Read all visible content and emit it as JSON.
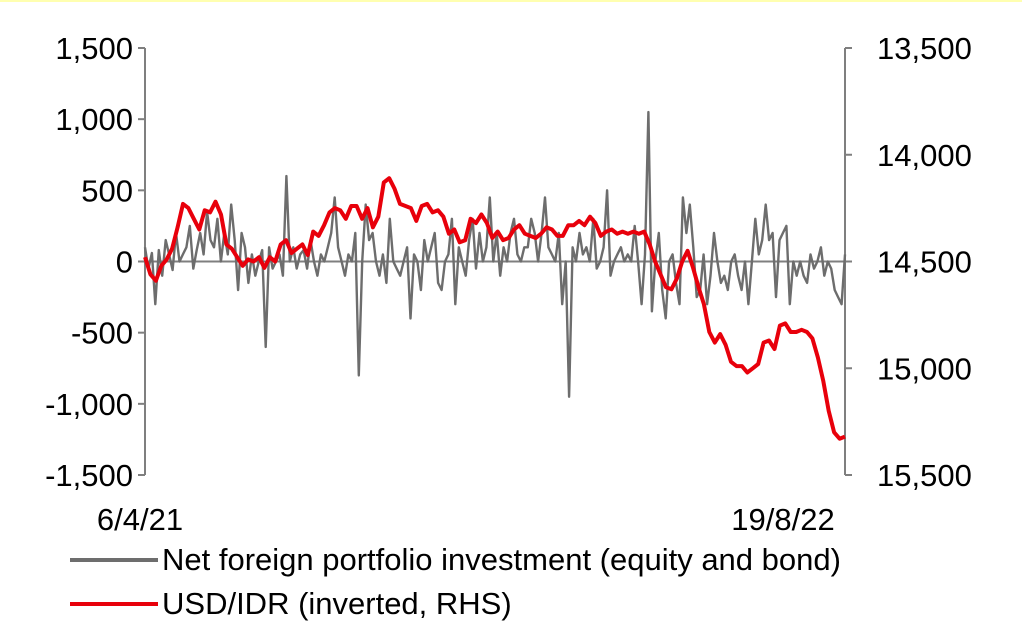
{
  "chart_data": {
    "type": "line",
    "x_start_label": "6/4/21",
    "x_end_label": "19/8/22",
    "left_axis": {
      "ylim": [
        -1500,
        1500
      ],
      "ticks": [
        1500,
        1000,
        500,
        0,
        -500,
        -1000,
        -1500
      ],
      "tick_labels": [
        "1,500",
        "1,000",
        "500",
        "0",
        "-500",
        "-1,000",
        "-1,500"
      ]
    },
    "right_axis": {
      "inverted": true,
      "ylim": [
        13500,
        15500
      ],
      "ticks": [
        13500,
        14000,
        14500,
        15000,
        15500
      ],
      "tick_labels": [
        "13,500",
        "14,000",
        "14,500",
        "15,000",
        "15,500"
      ]
    },
    "series": [
      {
        "name": "Net foreign portfolio investment (equity and bond)",
        "axis": "left",
        "color": "#6d6d6d",
        "values": [
          100,
          -50,
          60,
          -300,
          80,
          -100,
          150,
          50,
          -60,
          200,
          0,
          50,
          100,
          250,
          -50,
          80,
          200,
          50,
          350,
          150,
          100,
          300,
          0,
          200,
          50,
          400,
          150,
          -200,
          200,
          100,
          -150,
          50,
          -100,
          0,
          80,
          -600,
          100,
          -50,
          0,
          50,
          -100,
          600,
          0,
          100,
          -50,
          50,
          80,
          -50,
          150,
          0,
          -100,
          50,
          0,
          100,
          200,
          450,
          100,
          0,
          -100,
          50,
          0,
          200,
          -800,
          0,
          400,
          150,
          200,
          0,
          -100,
          50,
          -150,
          300,
          0,
          -50,
          -100,
          0,
          100,
          -400,
          50,
          0,
          -200,
          150,
          0,
          100,
          200,
          -150,
          -200,
          0,
          50,
          300,
          -300,
          100,
          0,
          -100,
          150,
          300,
          -50,
          200,
          0,
          100,
          450,
          0,
          200,
          -100,
          100,
          0,
          200,
          300,
          50,
          0,
          100,
          100,
          300,
          200,
          0,
          200,
          450,
          100,
          50,
          0,
          200,
          -300,
          0,
          -950,
          100,
          0,
          200,
          50,
          100,
          0,
          300,
          -50,
          0,
          100,
          500,
          -100,
          0,
          50,
          100,
          0,
          50,
          0,
          250,
          0,
          -300,
          50,
          1050,
          -350,
          0,
          200,
          -200,
          -400,
          0,
          50,
          -150,
          -300,
          450,
          200,
          400,
          100,
          -250,
          -200,
          50,
          -300,
          -100,
          200,
          0,
          -150,
          -100,
          -200,
          0,
          50,
          -100,
          -200,
          0,
          -300,
          0,
          300,
          50,
          150,
          400,
          150,
          200,
          -250,
          150,
          200,
          250,
          -300,
          0,
          -100,
          0,
          -100,
          -150,
          50,
          -50,
          0,
          100,
          -100,
          0,
          -50,
          -200,
          -250,
          -300,
          50
        ]
      },
      {
        "name": "USD/IDR (inverted, RHS)",
        "axis": "right",
        "color": "#e8000b",
        "values": [
          14480,
          14560,
          14590,
          14520,
          14490,
          14440,
          14340,
          14230,
          14250,
          14300,
          14350,
          14260,
          14270,
          14220,
          14280,
          14420,
          14440,
          14480,
          14520,
          14490,
          14500,
          14480,
          14530,
          14480,
          14500,
          14420,
          14400,
          14460,
          14440,
          14420,
          14470,
          14360,
          14380,
          14330,
          14270,
          14250,
          14260,
          14300,
          14240,
          14240,
          14300,
          14250,
          14340,
          14290,
          14130,
          14110,
          14160,
          14230,
          14240,
          14250,
          14310,
          14240,
          14230,
          14270,
          14260,
          14290,
          14370,
          14350,
          14410,
          14400,
          14300,
          14320,
          14280,
          14320,
          14390,
          14360,
          14400,
          14390,
          14350,
          14330,
          14370,
          14380,
          14390,
          14370,
          14340,
          14350,
          14380,
          14380,
          14330,
          14330,
          14310,
          14330,
          14290,
          14320,
          14380,
          14360,
          14350,
          14370,
          14360,
          14370,
          14360,
          14370,
          14360,
          14420,
          14500,
          14560,
          14620,
          14630,
          14580,
          14500,
          14450,
          14530,
          14620,
          14700,
          14830,
          14880,
          14840,
          14890,
          14970,
          14990,
          14990,
          15020,
          15000,
          14980,
          14880,
          14870,
          14910,
          14800,
          14790,
          14830,
          14830,
          14820,
          14830,
          14860,
          14950,
          15060,
          15200,
          15300,
          15330,
          15320
        ]
      }
    ]
  },
  "legend": [
    {
      "label": "Net foreign portfolio investment (equity and bond)",
      "color": "#6d6d6d"
    },
    {
      "label": "USD/IDR (inverted, RHS)",
      "color": "#e8000b"
    }
  ]
}
